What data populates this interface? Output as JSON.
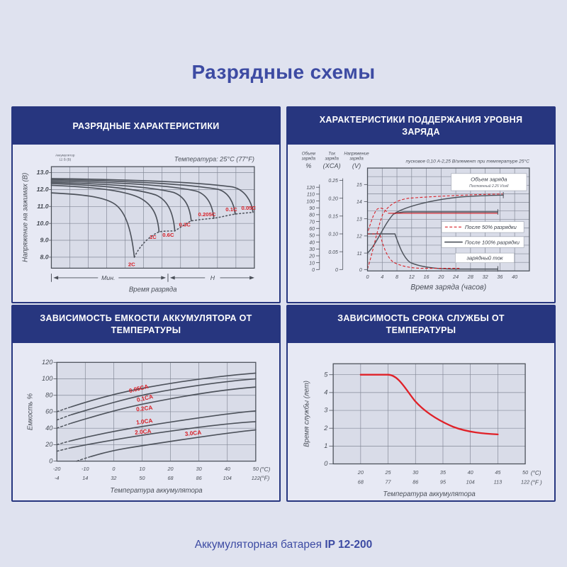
{
  "page": {
    "title": "Разрядные схемы",
    "footer_prefix": "Аккумуляторная батарея",
    "footer_model": "IP 12-200"
  },
  "colors": {
    "page_bg": "#dfe2ef",
    "accent_navy": "#27367f",
    "title_indigo": "#3d4ba3",
    "curve_gray": "#4d525b",
    "curve_red": "#d81f26",
    "plot_bg": "#d9dce8"
  },
  "chart_data": [
    {
      "type": "line",
      "panel_title": "РАЗРЯДНЫЕ ХАРАКТЕРИСТИКИ",
      "temperature_note": "Температура: 25°C (77°F)",
      "battery_note_l1": "Аккумулятор",
      "battery_note_l2": "12 В (В)",
      "ylabel": "Напряжение на зажимах (В)",
      "xlabel": "Время разряда",
      "x_zone_minutes": "Мин.",
      "x_zone_hours": "Н",
      "y_ticks": [
        "13.0",
        "12.0",
        "11.0",
        "10.0",
        "9.0",
        "8.0"
      ],
      "ylim": [
        7.4,
        13.3
      ],
      "series": [
        {
          "name": "2C",
          "start_v": 11.8,
          "end_v": 7.9
        },
        {
          "name": "1C",
          "start_v": 12.25,
          "end_v": 9.5
        },
        {
          "name": "0.6C",
          "start_v": 12.35,
          "end_v": 9.55
        },
        {
          "name": "0.3C",
          "start_v": 12.4,
          "end_v": 10.15
        },
        {
          "name": "0.205C",
          "start_v": 12.5,
          "end_v": 10.3
        },
        {
          "name": "0.1C",
          "start_v": 12.6,
          "end_v": 10.55
        },
        {
          "name": "0.05C",
          "start_v": 12.65,
          "end_v": 10.65
        }
      ]
    },
    {
      "type": "line",
      "panel_title": "ХАРАКТЕРИСТИКИ ПОДДЕРЖАНИЯ УРОВНЯ ЗАРЯДА",
      "condition_note": "пусковое 0,10 А-2,25 В/элемент при температуре 25°С",
      "xlabel": "Время заряда (часов)",
      "x_ticks": [
        "0",
        "4",
        "8",
        "12",
        "16",
        "20",
        "24",
        "28",
        "32",
        "36",
        "40"
      ],
      "axis_volume": {
        "l1": "Объем",
        "l2": "заряда",
        "unit": "%",
        "ticks": [
          "120",
          "110",
          "100",
          "90",
          "80",
          "70",
          "60",
          "50",
          "40",
          "30",
          "20",
          "10",
          "0"
        ]
      },
      "axis_current": {
        "l1": "Ток",
        "l2": "заряда",
        "unit": "(XCA)",
        "ticks": [
          "0.25",
          "0.20",
          "0.15",
          "0.10",
          "0.05",
          "0"
        ]
      },
      "axis_voltage": {
        "l1": "Напряжение",
        "l2": "заряда",
        "unit": "(V)",
        "ticks": [
          "15",
          "14",
          "13",
          "12",
          "11",
          "0"
        ]
      },
      "volume_box": {
        "title": "Объем заряда",
        "subtitle": "Постоянный 2.25 V/cell"
      },
      "current_box": "зарядный ток",
      "legend": [
        {
          "label": "После 50% разрядки",
          "style": "dashed-red"
        },
        {
          "label": "После 100% разрядки",
          "style": "solid-dark"
        }
      ],
      "series": [
        {
          "name": "Объем заряда после 50% разрядки",
          "x_hours": [
            0,
            4,
            8,
            16,
            24,
            36
          ],
          "values_pct": [
            0,
            75,
            97,
            105,
            108,
            110
          ]
        },
        {
          "name": "Объем заряда после 100% разрядки",
          "x_hours": [
            0,
            4,
            8,
            16,
            24,
            36
          ],
          "values_pct": [
            0,
            35,
            62,
            88,
            100,
            105
          ]
        },
        {
          "name": "Напряжение заряда после 50% разрядки",
          "x_hours": [
            0,
            2,
            4,
            8,
            36
          ],
          "values_v": [
            12.3,
            13.2,
            13.55,
            13.4,
            13.4
          ]
        },
        {
          "name": "Напряжение заряда после 100% разрядки",
          "x_hours": [
            0,
            4,
            8,
            36
          ],
          "values_v": [
            11.2,
            12.6,
            13.4,
            13.4
          ]
        },
        {
          "name": "Зарядный ток после 50% разрядки",
          "x_hours": [
            0,
            3,
            6,
            12,
            36
          ],
          "values_xca": [
            0.1,
            0.1,
            0.035,
            0.01,
            0.005
          ]
        },
        {
          "name": "Зарядный ток после 100% разрядки",
          "x_hours": [
            0,
            7,
            10,
            16,
            36
          ],
          "values_xca": [
            0.1,
            0.1,
            0.045,
            0.015,
            0.008
          ]
        }
      ]
    },
    {
      "type": "line",
      "panel_title": "ЗАВИСИМОСТЬ ЕМКОСТИ АККУМУЛЯТОРА ОТ ТЕМПЕРАТУРЫ",
      "ylabel": "Емкость %",
      "xlabel": "Температура аккумулятора",
      "y_ticks": [
        "120",
        "100",
        "80",
        "60",
        "40",
        "20",
        "0"
      ],
      "x_ticks_c": [
        "-20",
        "-10",
        "0",
        "10",
        "20",
        "30",
        "40",
        "50"
      ],
      "x_ticks_f": [
        "-4",
        "14",
        "32",
        "50",
        "68",
        "86",
        "104",
        "122"
      ],
      "unit_c": "(°C)",
      "unit_f": "(°F)",
      "ylim": [
        0,
        120
      ],
      "categories_c": [
        -20,
        -10,
        0,
        10,
        20,
        30,
        40,
        50
      ],
      "series": [
        {
          "name": "0.05CA",
          "values": [
            60,
            71,
            81,
            89,
            96,
            101,
            105,
            107
          ]
        },
        {
          "name": "0.1CA",
          "values": [
            50,
            62,
            72,
            81,
            88,
            93,
            97,
            100
          ]
        },
        {
          "name": "0.2CA",
          "values": [
            40,
            52,
            62,
            70,
            77,
            82,
            86,
            90
          ]
        },
        {
          "name": "1.0CA",
          "values": [
            20,
            28,
            35,
            41,
            47,
            52,
            57,
            61
          ]
        },
        {
          "name": "2.0CA",
          "values": [
            12,
            19,
            26,
            32,
            37,
            41,
            45,
            48
          ]
        },
        {
          "name": "3.0CA",
          "values": [
            null,
            4,
            13,
            20,
            26,
            31,
            35,
            38
          ]
        }
      ]
    },
    {
      "type": "line",
      "panel_title": "ЗАВИСИМОСТЬ СРОКА СЛУЖБЫ ОТ ТЕМПЕРАТУРЫ",
      "ylabel": "Время службы (лет)",
      "xlabel": "Температура аккумулятора",
      "y_ticks": [
        "5",
        "4",
        "3",
        "2",
        "1",
        "0"
      ],
      "x_ticks_c": [
        "20",
        "25",
        "30",
        "35",
        "40",
        "45",
        "50"
      ],
      "x_ticks_f": [
        "68",
        "77",
        "86",
        "95",
        "104",
        "113",
        "122"
      ],
      "unit_c": "(°C)",
      "unit_f": "(°F )",
      "ylim": [
        0,
        5.6
      ],
      "series": [
        {
          "name": "Срок службы",
          "categories_c": [
            20,
            25,
            30,
            35,
            40,
            45
          ],
          "values_years": [
            5,
            5,
            3.5,
            2.7,
            2.1,
            1.65
          ]
        }
      ]
    }
  ]
}
